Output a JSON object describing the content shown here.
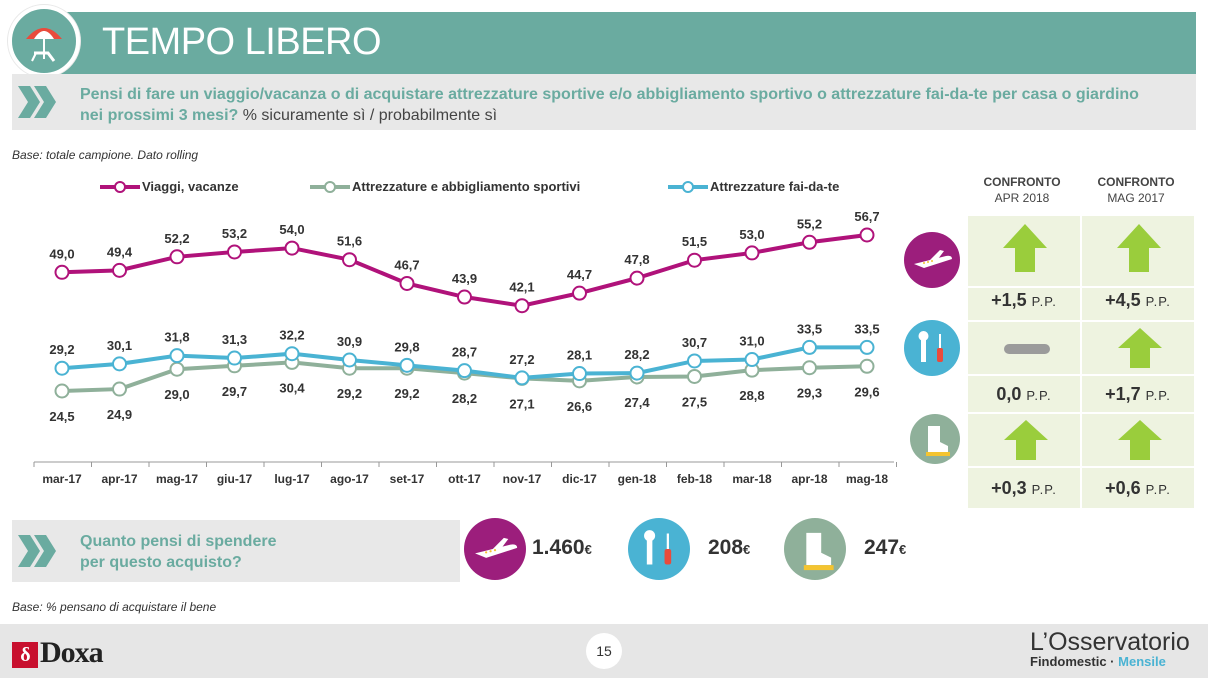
{
  "header": {
    "title": "TEMPO LIBERO"
  },
  "question": {
    "main": "Pensi di fare un viaggio/vacanza o di acquistare attrezzature sportive e/o abbigliamento sportivo o attrezzature fai-da-te per casa o giardino nei prossimi 3 mesi?",
    "sub": "% sicuramente sì / probabilmente sì"
  },
  "base_note": "Base: totale campione. Dato rolling",
  "base_note_2": "Base: % pensano di acquistare il bene",
  "colors": {
    "viaggi": "#b0127a",
    "sport": "#8fb09a",
    "faidate": "#4ab3d3",
    "teal": "#6aaba0",
    "arrow": "#9acd3c"
  },
  "chart_data": {
    "type": "line",
    "categories": [
      "mar-17",
      "apr-17",
      "mag-17",
      "giu-17",
      "lug-17",
      "ago-17",
      "set-17",
      "ott-17",
      "nov-17",
      "dic-17",
      "gen-18",
      "feb-18",
      "mar-18",
      "apr-18",
      "mag-18"
    ],
    "series": [
      {
        "name": "Viaggi, vacanze",
        "key": "viaggi",
        "values": [
          49.0,
          49.4,
          52.2,
          53.2,
          54.0,
          51.6,
          46.7,
          43.9,
          42.1,
          44.7,
          47.8,
          51.5,
          53.0,
          55.2,
          56.7
        ],
        "labels": [
          "49,0",
          "49,4",
          "52,2",
          "53,2",
          "54,0",
          "51,6",
          "46,7",
          "43,9",
          "42,1",
          "44,7",
          "47,8",
          "51,5",
          "53,0",
          "55,2",
          "56,7"
        ]
      },
      {
        "name": "Attrezzature e abbigliamento sportivi",
        "key": "sport",
        "values": [
          24.5,
          24.9,
          29.0,
          29.7,
          30.4,
          29.2,
          29.2,
          28.2,
          27.1,
          26.6,
          27.4,
          27.5,
          28.8,
          29.3,
          29.6
        ],
        "labels": [
          "24,5",
          "24,9",
          "29,0",
          "29,7",
          "30,4",
          "29,2",
          "29,2",
          "28,2",
          "27,1",
          "26,6",
          "27,4",
          "27,5",
          "28,8",
          "29,3",
          "29,6"
        ]
      },
      {
        "name": "Attrezzature fai-da-te",
        "key": "faidate",
        "values": [
          29.2,
          30.1,
          31.8,
          31.3,
          32.2,
          30.9,
          29.8,
          28.7,
          27.2,
          28.1,
          28.2,
          30.7,
          31.0,
          33.5,
          33.5
        ],
        "labels": [
          "29,2",
          "30,1",
          "31,8",
          "31,3",
          "32,2",
          "30,9",
          "29,8",
          "28,7",
          "27,2",
          "28,1",
          "28,2",
          "30,7",
          "31,0",
          "33,5",
          "33,5"
        ]
      }
    ],
    "legend_position": "top",
    "grid": false
  },
  "comparison": {
    "headers": [
      {
        "bold": "CONFRONTO",
        "sub": "APR 2018"
      },
      {
        "bold": "CONFRONTO",
        "sub": "MAG 2017"
      }
    ],
    "rows": [
      {
        "icon": "airplane-icon",
        "cells": [
          {
            "trend": "up",
            "value": "+1,5"
          },
          {
            "trend": "up",
            "value": "+4,5"
          }
        ]
      },
      {
        "icon": "tools-icon",
        "cells": [
          {
            "trend": "flat",
            "value": "0,0"
          },
          {
            "trend": "up",
            "value": "+1,7"
          }
        ]
      },
      {
        "icon": "boot-icon",
        "cells": [
          {
            "trend": "up",
            "value": "+0,3"
          },
          {
            "trend": "up",
            "value": "+0,6"
          }
        ]
      }
    ],
    "unit": "P.P."
  },
  "spending": {
    "question": [
      "Quanto pensi di spendere",
      "per questo acquisto?"
    ],
    "items": [
      {
        "icon": "airplane-icon",
        "value": "1.460",
        "currency": "€"
      },
      {
        "icon": "tools-icon",
        "value": "208",
        "currency": "€"
      },
      {
        "icon": "boot-icon",
        "value": "247",
        "currency": "€"
      }
    ]
  },
  "footer": {
    "page": "15",
    "doxa": "Doxa",
    "osservatorio": "L’Osservatorio",
    "findomestic": "Findomestic ·",
    "mensile": "Mensile"
  }
}
